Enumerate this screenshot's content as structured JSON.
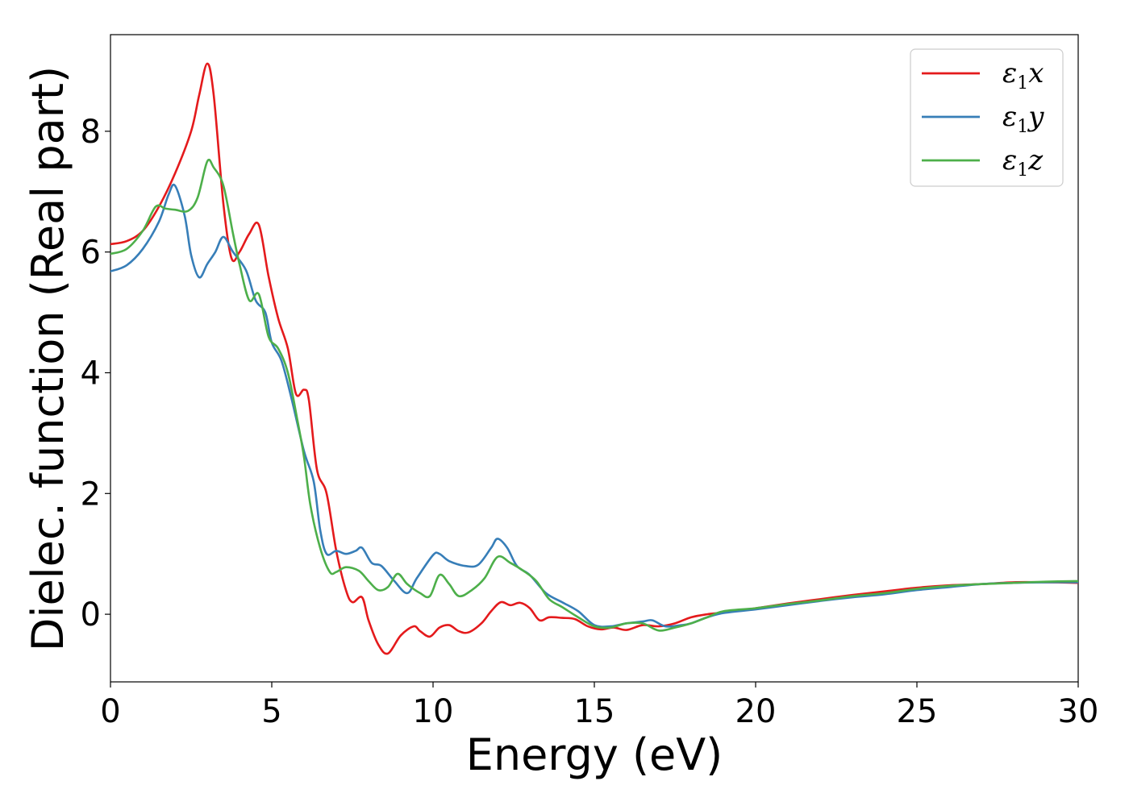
{
  "chart_data": {
    "type": "line",
    "xlabel": "Energy (eV)",
    "ylabel": "Dielec. function (Real part)",
    "xlim": [
      0,
      30
    ],
    "ylim": [
      -1.12,
      9.6
    ],
    "xticks": [
      0,
      5,
      10,
      15,
      20,
      25,
      30
    ],
    "yticks": [
      0,
      2,
      4,
      6,
      8
    ],
    "grid": false,
    "legend_position": "top-right",
    "series": [
      {
        "name": "ε1x",
        "legend_base": "ε",
        "legend_sub": "1",
        "legend_tail": "x",
        "color": "#e41a1c",
        "points": [
          [
            0,
            6.13
          ],
          [
            0.5,
            6.18
          ],
          [
            1,
            6.35
          ],
          [
            1.5,
            6.75
          ],
          [
            2,
            7.3
          ],
          [
            2.5,
            8.0
          ],
          [
            2.75,
            8.6
          ],
          [
            3.0,
            9.12
          ],
          [
            3.2,
            8.6
          ],
          [
            3.5,
            6.8
          ],
          [
            3.75,
            5.9
          ],
          [
            4,
            6.0
          ],
          [
            4.3,
            6.3
          ],
          [
            4.6,
            6.45
          ],
          [
            4.9,
            5.6
          ],
          [
            5.2,
            4.9
          ],
          [
            5.5,
            4.4
          ],
          [
            5.75,
            3.65
          ],
          [
            6.0,
            3.72
          ],
          [
            6.15,
            3.55
          ],
          [
            6.4,
            2.4
          ],
          [
            6.7,
            2.0
          ],
          [
            7.0,
            1.05
          ],
          [
            7.3,
            0.4
          ],
          [
            7.5,
            0.2
          ],
          [
            7.8,
            0.28
          ],
          [
            8.0,
            -0.1
          ],
          [
            8.3,
            -0.5
          ],
          [
            8.6,
            -0.65
          ],
          [
            9.0,
            -0.35
          ],
          [
            9.4,
            -0.2
          ],
          [
            9.6,
            -0.28
          ],
          [
            9.9,
            -0.37
          ],
          [
            10.2,
            -0.22
          ],
          [
            10.5,
            -0.18
          ],
          [
            10.8,
            -0.28
          ],
          [
            11.1,
            -0.3
          ],
          [
            11.5,
            -0.15
          ],
          [
            11.8,
            0.05
          ],
          [
            12.1,
            0.2
          ],
          [
            12.4,
            0.15
          ],
          [
            12.7,
            0.19
          ],
          [
            13.0,
            0.1
          ],
          [
            13.3,
            -0.1
          ],
          [
            13.6,
            -0.05
          ],
          [
            14.0,
            -0.06
          ],
          [
            14.4,
            -0.08
          ],
          [
            14.8,
            -0.2
          ],
          [
            15.2,
            -0.25
          ],
          [
            15.6,
            -0.22
          ],
          [
            16.0,
            -0.26
          ],
          [
            16.5,
            -0.18
          ],
          [
            17.0,
            -0.2
          ],
          [
            17.5,
            -0.15
          ],
          [
            18.0,
            -0.05
          ],
          [
            18.5,
            0.0
          ],
          [
            19.0,
            0.03
          ],
          [
            20.0,
            0.1
          ],
          [
            21.0,
            0.18
          ],
          [
            22.0,
            0.25
          ],
          [
            23.0,
            0.32
          ],
          [
            24.0,
            0.38
          ],
          [
            25.0,
            0.44
          ],
          [
            26.0,
            0.48
          ],
          [
            27.0,
            0.5
          ],
          [
            28.0,
            0.53
          ],
          [
            29.0,
            0.53
          ],
          [
            30.0,
            0.52
          ]
        ]
      },
      {
        "name": "ε1y",
        "legend_base": "ε",
        "legend_sub": "1",
        "legend_tail": "y",
        "color": "#377eb8",
        "points": [
          [
            0,
            5.68
          ],
          [
            0.5,
            5.78
          ],
          [
            1,
            6.05
          ],
          [
            1.5,
            6.5
          ],
          [
            1.8,
            6.95
          ],
          [
            2.0,
            7.1
          ],
          [
            2.3,
            6.6
          ],
          [
            2.5,
            5.95
          ],
          [
            2.75,
            5.58
          ],
          [
            3.0,
            5.8
          ],
          [
            3.25,
            6.0
          ],
          [
            3.5,
            6.25
          ],
          [
            3.8,
            6.0
          ],
          [
            4.2,
            5.7
          ],
          [
            4.5,
            5.2
          ],
          [
            4.8,
            5.0
          ],
          [
            5.0,
            4.5
          ],
          [
            5.3,
            4.2
          ],
          [
            5.6,
            3.6
          ],
          [
            6.0,
            2.7
          ],
          [
            6.3,
            2.2
          ],
          [
            6.5,
            1.4
          ],
          [
            6.7,
            1.0
          ],
          [
            7.0,
            1.05
          ],
          [
            7.3,
            1.0
          ],
          [
            7.6,
            1.05
          ],
          [
            7.8,
            1.1
          ],
          [
            8.1,
            0.85
          ],
          [
            8.4,
            0.8
          ],
          [
            8.8,
            0.55
          ],
          [
            9.2,
            0.35
          ],
          [
            9.5,
            0.6
          ],
          [
            10.0,
            0.98
          ],
          [
            10.2,
            1.0
          ],
          [
            10.5,
            0.88
          ],
          [
            11.0,
            0.8
          ],
          [
            11.4,
            0.82
          ],
          [
            11.8,
            1.1
          ],
          [
            12.0,
            1.25
          ],
          [
            12.3,
            1.1
          ],
          [
            12.6,
            0.8
          ],
          [
            13.0,
            0.65
          ],
          [
            13.5,
            0.35
          ],
          [
            14.0,
            0.2
          ],
          [
            14.5,
            0.05
          ],
          [
            15.0,
            -0.18
          ],
          [
            15.5,
            -0.2
          ],
          [
            16.0,
            -0.15
          ],
          [
            16.5,
            -0.12
          ],
          [
            16.8,
            -0.1
          ],
          [
            17.2,
            -0.2
          ],
          [
            17.7,
            -0.18
          ],
          [
            18.0,
            -0.15
          ],
          [
            18.5,
            -0.05
          ],
          [
            19.0,
            0.02
          ],
          [
            20.0,
            0.08
          ],
          [
            21.0,
            0.15
          ],
          [
            22.0,
            0.22
          ],
          [
            23.0,
            0.28
          ],
          [
            24.0,
            0.33
          ],
          [
            25.0,
            0.4
          ],
          [
            26.0,
            0.45
          ],
          [
            27.0,
            0.5
          ],
          [
            28.0,
            0.52
          ],
          [
            29.0,
            0.53
          ],
          [
            30.0,
            0.53
          ]
        ]
      },
      {
        "name": "ε1z",
        "legend_base": "ε",
        "legend_sub": "1",
        "legend_tail": "z",
        "color": "#4daf4a",
        "points": [
          [
            0,
            5.97
          ],
          [
            0.5,
            6.05
          ],
          [
            1,
            6.35
          ],
          [
            1.4,
            6.75
          ],
          [
            1.7,
            6.72
          ],
          [
            2.0,
            6.7
          ],
          [
            2.4,
            6.68
          ],
          [
            2.7,
            6.9
          ],
          [
            3.0,
            7.5
          ],
          [
            3.2,
            7.4
          ],
          [
            3.5,
            7.1
          ],
          [
            3.8,
            6.3
          ],
          [
            4.0,
            5.8
          ],
          [
            4.3,
            5.2
          ],
          [
            4.6,
            5.3
          ],
          [
            4.9,
            4.6
          ],
          [
            5.2,
            4.4
          ],
          [
            5.5,
            4.0
          ],
          [
            5.8,
            3.2
          ],
          [
            6.0,
            2.6
          ],
          [
            6.2,
            1.8
          ],
          [
            6.5,
            1.1
          ],
          [
            6.8,
            0.7
          ],
          [
            7.0,
            0.7
          ],
          [
            7.3,
            0.78
          ],
          [
            7.7,
            0.72
          ],
          [
            8.0,
            0.55
          ],
          [
            8.3,
            0.4
          ],
          [
            8.6,
            0.45
          ],
          [
            8.9,
            0.67
          ],
          [
            9.2,
            0.5
          ],
          [
            9.6,
            0.35
          ],
          [
            9.9,
            0.3
          ],
          [
            10.2,
            0.65
          ],
          [
            10.5,
            0.5
          ],
          [
            10.8,
            0.3
          ],
          [
            11.2,
            0.4
          ],
          [
            11.6,
            0.6
          ],
          [
            12.0,
            0.95
          ],
          [
            12.4,
            0.85
          ],
          [
            12.8,
            0.72
          ],
          [
            13.2,
            0.55
          ],
          [
            13.6,
            0.25
          ],
          [
            14.0,
            0.12
          ],
          [
            14.5,
            -0.05
          ],
          [
            15.0,
            -0.2
          ],
          [
            15.5,
            -0.22
          ],
          [
            16.0,
            -0.15
          ],
          [
            16.5,
            -0.15
          ],
          [
            17.0,
            -0.27
          ],
          [
            17.5,
            -0.22
          ],
          [
            18.0,
            -0.15
          ],
          [
            18.5,
            -0.05
          ],
          [
            19.0,
            0.05
          ],
          [
            20.0,
            0.1
          ],
          [
            21.0,
            0.17
          ],
          [
            22.0,
            0.23
          ],
          [
            23.0,
            0.3
          ],
          [
            24.0,
            0.35
          ],
          [
            25.0,
            0.42
          ],
          [
            26.0,
            0.47
          ],
          [
            27.0,
            0.5
          ],
          [
            28.0,
            0.52
          ],
          [
            29.0,
            0.54
          ],
          [
            30.0,
            0.55
          ]
        ]
      }
    ]
  }
}
